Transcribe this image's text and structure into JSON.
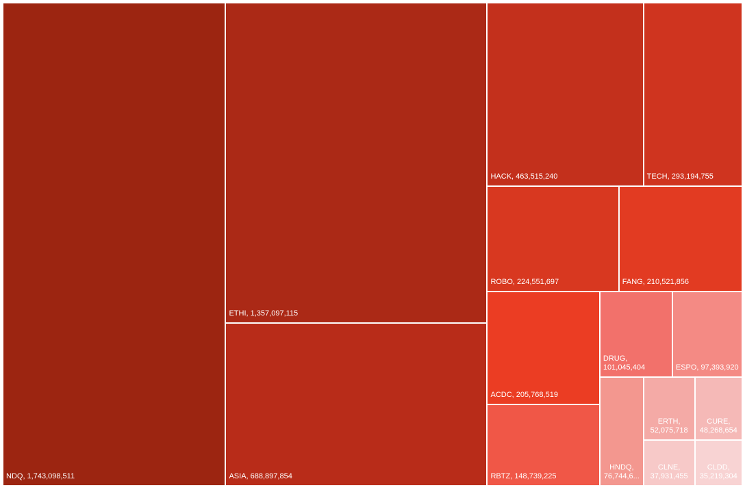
{
  "chart_data": {
    "type": "treemap",
    "categories": [
      "NDQ",
      "ETHI",
      "ASIA",
      "HACK",
      "TECH",
      "ROBO",
      "FANG",
      "ACDC",
      "RBTZ",
      "DRUG",
      "ESPO",
      "HNDQ",
      "ERTH",
      "CURE",
      "CLNE",
      "CLDD"
    ],
    "values": [
      1743098511,
      1357097115,
      688897854,
      463515240,
      293194755,
      224551697,
      210521856,
      205768519,
      148739225,
      101045404,
      97393920,
      76744600,
      52075718,
      48268654,
      37931455,
      35219304
    ],
    "value_labels": [
      "NDQ, 1,743,098,511",
      "ETHI, 1,357,097,115",
      "ASIA, 688,897,854",
      "HACK, 463,515,240",
      "TECH, 293,194,755",
      "ROBO, 224,551,697",
      "FANG, 210,521,856",
      "ACDC, 205,768,519",
      "RBTZ, 148,739,225",
      "DRUG, 101,045,404",
      "ESPO, 97,393,920",
      "HNDQ, 76,744,6...",
      "ERTH, 52,075,718",
      "CURE, 48,268,654",
      "CLNE, 37,931,455",
      "CLDD, 35,219,304"
    ],
    "colors": [
      "#9c2511",
      "#ab2916",
      "#b82c19",
      "#c3301c",
      "#cf341f",
      "#d83820",
      "#e23b22",
      "#eb3d23",
      "#f05747",
      "#f2716b",
      "#f48a84",
      "#f3978f",
      "#f4aaa6",
      "#f5b9b7",
      "#f7c9c8",
      "#f8d3d3"
    ]
  }
}
